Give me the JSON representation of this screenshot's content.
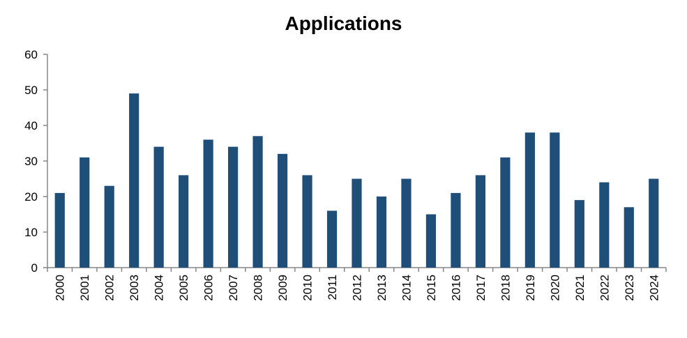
{
  "chart_data": {
    "type": "bar",
    "title": "Applications",
    "xlabel": "",
    "ylabel": "",
    "categories": [
      "2000",
      "2001",
      "2002",
      "2003",
      "2004",
      "2005",
      "2006",
      "2007",
      "2008",
      "2009",
      "2010",
      "2011",
      "2012",
      "2013",
      "2014",
      "2015",
      "2016",
      "2017",
      "2018",
      "2019",
      "2020",
      "2021",
      "2022",
      "2023",
      "2024"
    ],
    "values": [
      21,
      31,
      23,
      49,
      34,
      26,
      36,
      34,
      37,
      32,
      26,
      16,
      25,
      20,
      25,
      15,
      21,
      26,
      31,
      38,
      38,
      19,
      24,
      17,
      25
    ],
    "ylim": [
      0,
      60
    ],
    "yticks": [
      0,
      10,
      20,
      30,
      40,
      50,
      60
    ],
    "grid": false,
    "legend": "none",
    "bar_color": "#1f4e79"
  }
}
